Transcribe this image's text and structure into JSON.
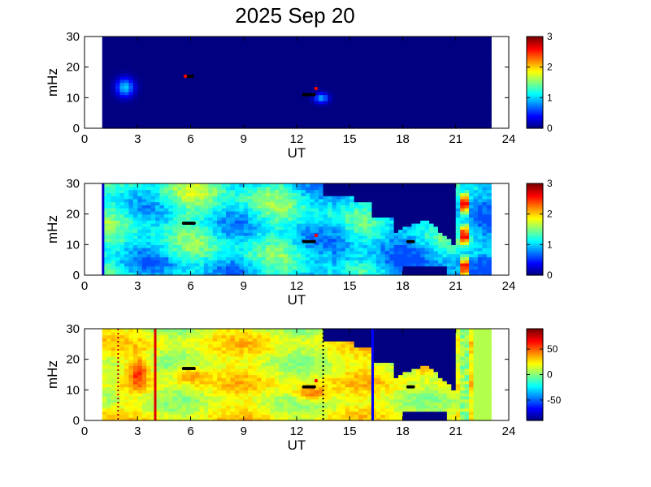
{
  "chart_data": {
    "title": "2025 Sep 20",
    "panels": [
      {
        "type": "heatmap",
        "xlabel": "UT",
        "ylabel": "mHz",
        "xlim": [
          0,
          24
        ],
        "ylim": [
          0,
          30
        ],
        "xticks": [
          "0",
          "3",
          "6",
          "9",
          "12",
          "15",
          "18",
          "21",
          "24"
        ],
        "yticks": [
          "0",
          "10",
          "20",
          "30"
        ],
        "data_time_range": [
          1,
          23
        ],
        "colorbar": {
          "min": 0,
          "max": 3,
          "ticks": [
            "0",
            "1",
            "2",
            "3"
          ]
        },
        "description_values": {
          "background": 0,
          "blob_1": {
            "t": 2.2,
            "f": 13,
            "v": 0.9
          },
          "blob_2": {
            "t": 13.2,
            "f": 10,
            "v": 0.8
          }
        },
        "markers_black": [
          {
            "t0": 12.4,
            "t1": 13.0,
            "f": 11
          },
          {
            "t0": 5.8,
            "t1": 6.1,
            "f": 17
          }
        ],
        "markers_red": [
          {
            "t": 5.7,
            "f": 17
          },
          {
            "t": 13.1,
            "f": 13
          }
        ]
      },
      {
        "type": "heatmap",
        "xlabel": "UT",
        "ylabel": "mHz",
        "xlim": [
          0,
          24
        ],
        "ylim": [
          0,
          30
        ],
        "xticks": [
          "0",
          "3",
          "6",
          "9",
          "12",
          "15",
          "18",
          "21",
          "24"
        ],
        "yticks": [
          "0",
          "10",
          "20",
          "30"
        ],
        "data_time_range": [
          1,
          23
        ],
        "colorbar": {
          "min": 0,
          "max": 3,
          "ticks": [
            "0",
            "1",
            "2",
            "3"
          ]
        },
        "markers_black": [
          {
            "t0": 5.6,
            "t1": 6.2,
            "f": 17
          },
          {
            "t0": 12.4,
            "t1": 13.0,
            "f": 11
          },
          {
            "t0": 18.3,
            "t1": 18.6,
            "f": 11
          }
        ],
        "markers_red": [
          {
            "t": 13.1,
            "f": 13
          }
        ]
      },
      {
        "type": "heatmap",
        "xlabel": "UT",
        "ylabel": "mHz",
        "xlim": [
          0,
          24
        ],
        "ylim": [
          0,
          30
        ],
        "xticks": [
          "0",
          "3",
          "6",
          "9",
          "12",
          "15",
          "18",
          "21",
          "24"
        ],
        "yticks": [
          "0",
          "10",
          "20",
          "30"
        ],
        "data_time_range": [
          1,
          23
        ],
        "colorbar": {
          "min": -90,
          "max": 90,
          "ticks": [
            "-50",
            "0",
            "50"
          ]
        },
        "vertical_lines": [
          {
            "t": 1.9,
            "style": "dotted",
            "color": "#c00000"
          },
          {
            "t": 4.0,
            "style": "solid",
            "color": "#e00000"
          },
          {
            "t": 13.5,
            "style": "dotted",
            "color": "#000000"
          },
          {
            "t": 16.3,
            "style": "solid",
            "color": "#0000ff"
          }
        ],
        "markers_black": [
          {
            "t0": 5.6,
            "t1": 6.2,
            "f": 17
          },
          {
            "t0": 12.4,
            "t1": 13.0,
            "f": 11
          },
          {
            "t0": 18.3,
            "t1": 18.6,
            "f": 11
          }
        ],
        "markers_red": [
          {
            "t": 13.1,
            "f": 13
          }
        ]
      }
    ]
  }
}
